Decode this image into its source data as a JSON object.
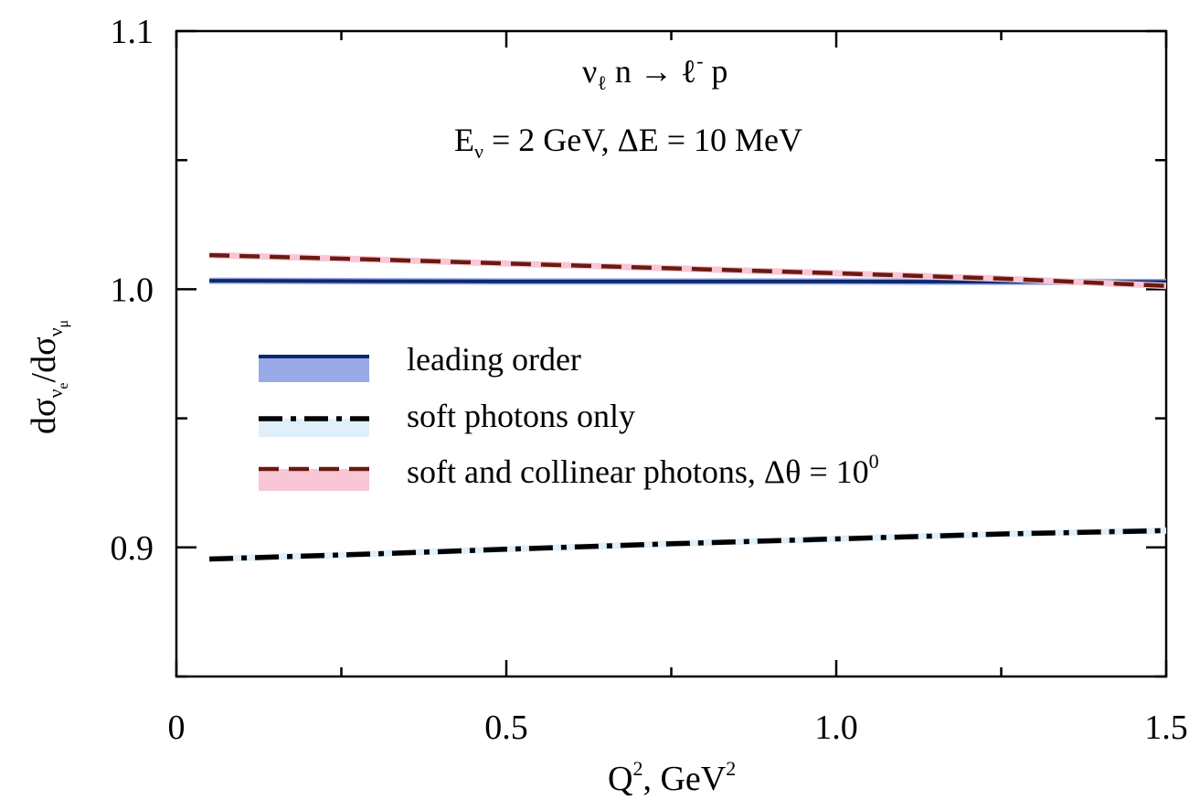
{
  "chart_data": {
    "type": "line",
    "annotations": {
      "line1_parts": [
        "ν",
        "ℓ",
        " n → ℓ",
        "-",
        " p"
      ],
      "line2_parts": [
        "E",
        "ν",
        " = 2 GeV, ΔE = 10 MeV"
      ]
    },
    "xlabel_parts": [
      "Q",
      "2",
      ", GeV",
      "2"
    ],
    "ylabel_parts": [
      "dσ",
      "ν",
      "e",
      "/dσ",
      "ν",
      "μ"
    ],
    "xlim": [
      0,
      1.5
    ],
    "ylim": [
      0.85,
      1.1
    ],
    "x_ticks": [
      {
        "value": 0,
        "label": "0"
      },
      {
        "value": 0.5,
        "label": "0.5"
      },
      {
        "value": 1.0,
        "label": "1.0"
      },
      {
        "value": 1.5,
        "label": "1.5"
      }
    ],
    "x_minor_ticks": [
      0.25,
      0.75,
      1.25
    ],
    "y_ticks": [
      {
        "value": 0.9,
        "label": "0.9"
      },
      {
        "value": 1.0,
        "label": "1.0"
      },
      {
        "value": 1.1,
        "label": "1.1"
      }
    ],
    "y_minor_ticks": [
      0.85,
      0.95,
      1.05
    ],
    "grid": false,
    "legend_position": "center-left",
    "series": [
      {
        "name": "leading order",
        "style": "solid",
        "color": "#0d2a6e",
        "band_color": "#9aa9e8",
        "x": [
          0.05,
          0.3,
          0.5,
          0.75,
          1.0,
          1.25,
          1.5
        ],
        "y": [
          1.0033,
          1.0031,
          1.003,
          1.003,
          1.003,
          1.0029,
          1.0028
        ]
      },
      {
        "name": "soft photons only",
        "style": "dashdot",
        "color": "#000000",
        "band_color": "#dff0fb",
        "x": [
          0.05,
          0.3,
          0.5,
          0.75,
          1.0,
          1.25,
          1.5
        ],
        "y": [
          0.8955,
          0.8975,
          0.8993,
          0.9014,
          0.9033,
          0.9052,
          0.9065
        ]
      },
      {
        "name": "soft and collinear photons, Δθ = 10",
        "name_sup": "0",
        "style": "dashed",
        "color": "#6b1a10",
        "band_color": "#f8c7d5",
        "x": [
          0.05,
          0.3,
          0.5,
          0.75,
          1.0,
          1.25,
          1.5
        ],
        "y": [
          1.0132,
          1.0115,
          1.01,
          1.0081,
          1.0062,
          1.0041,
          1.0013
        ]
      }
    ]
  }
}
